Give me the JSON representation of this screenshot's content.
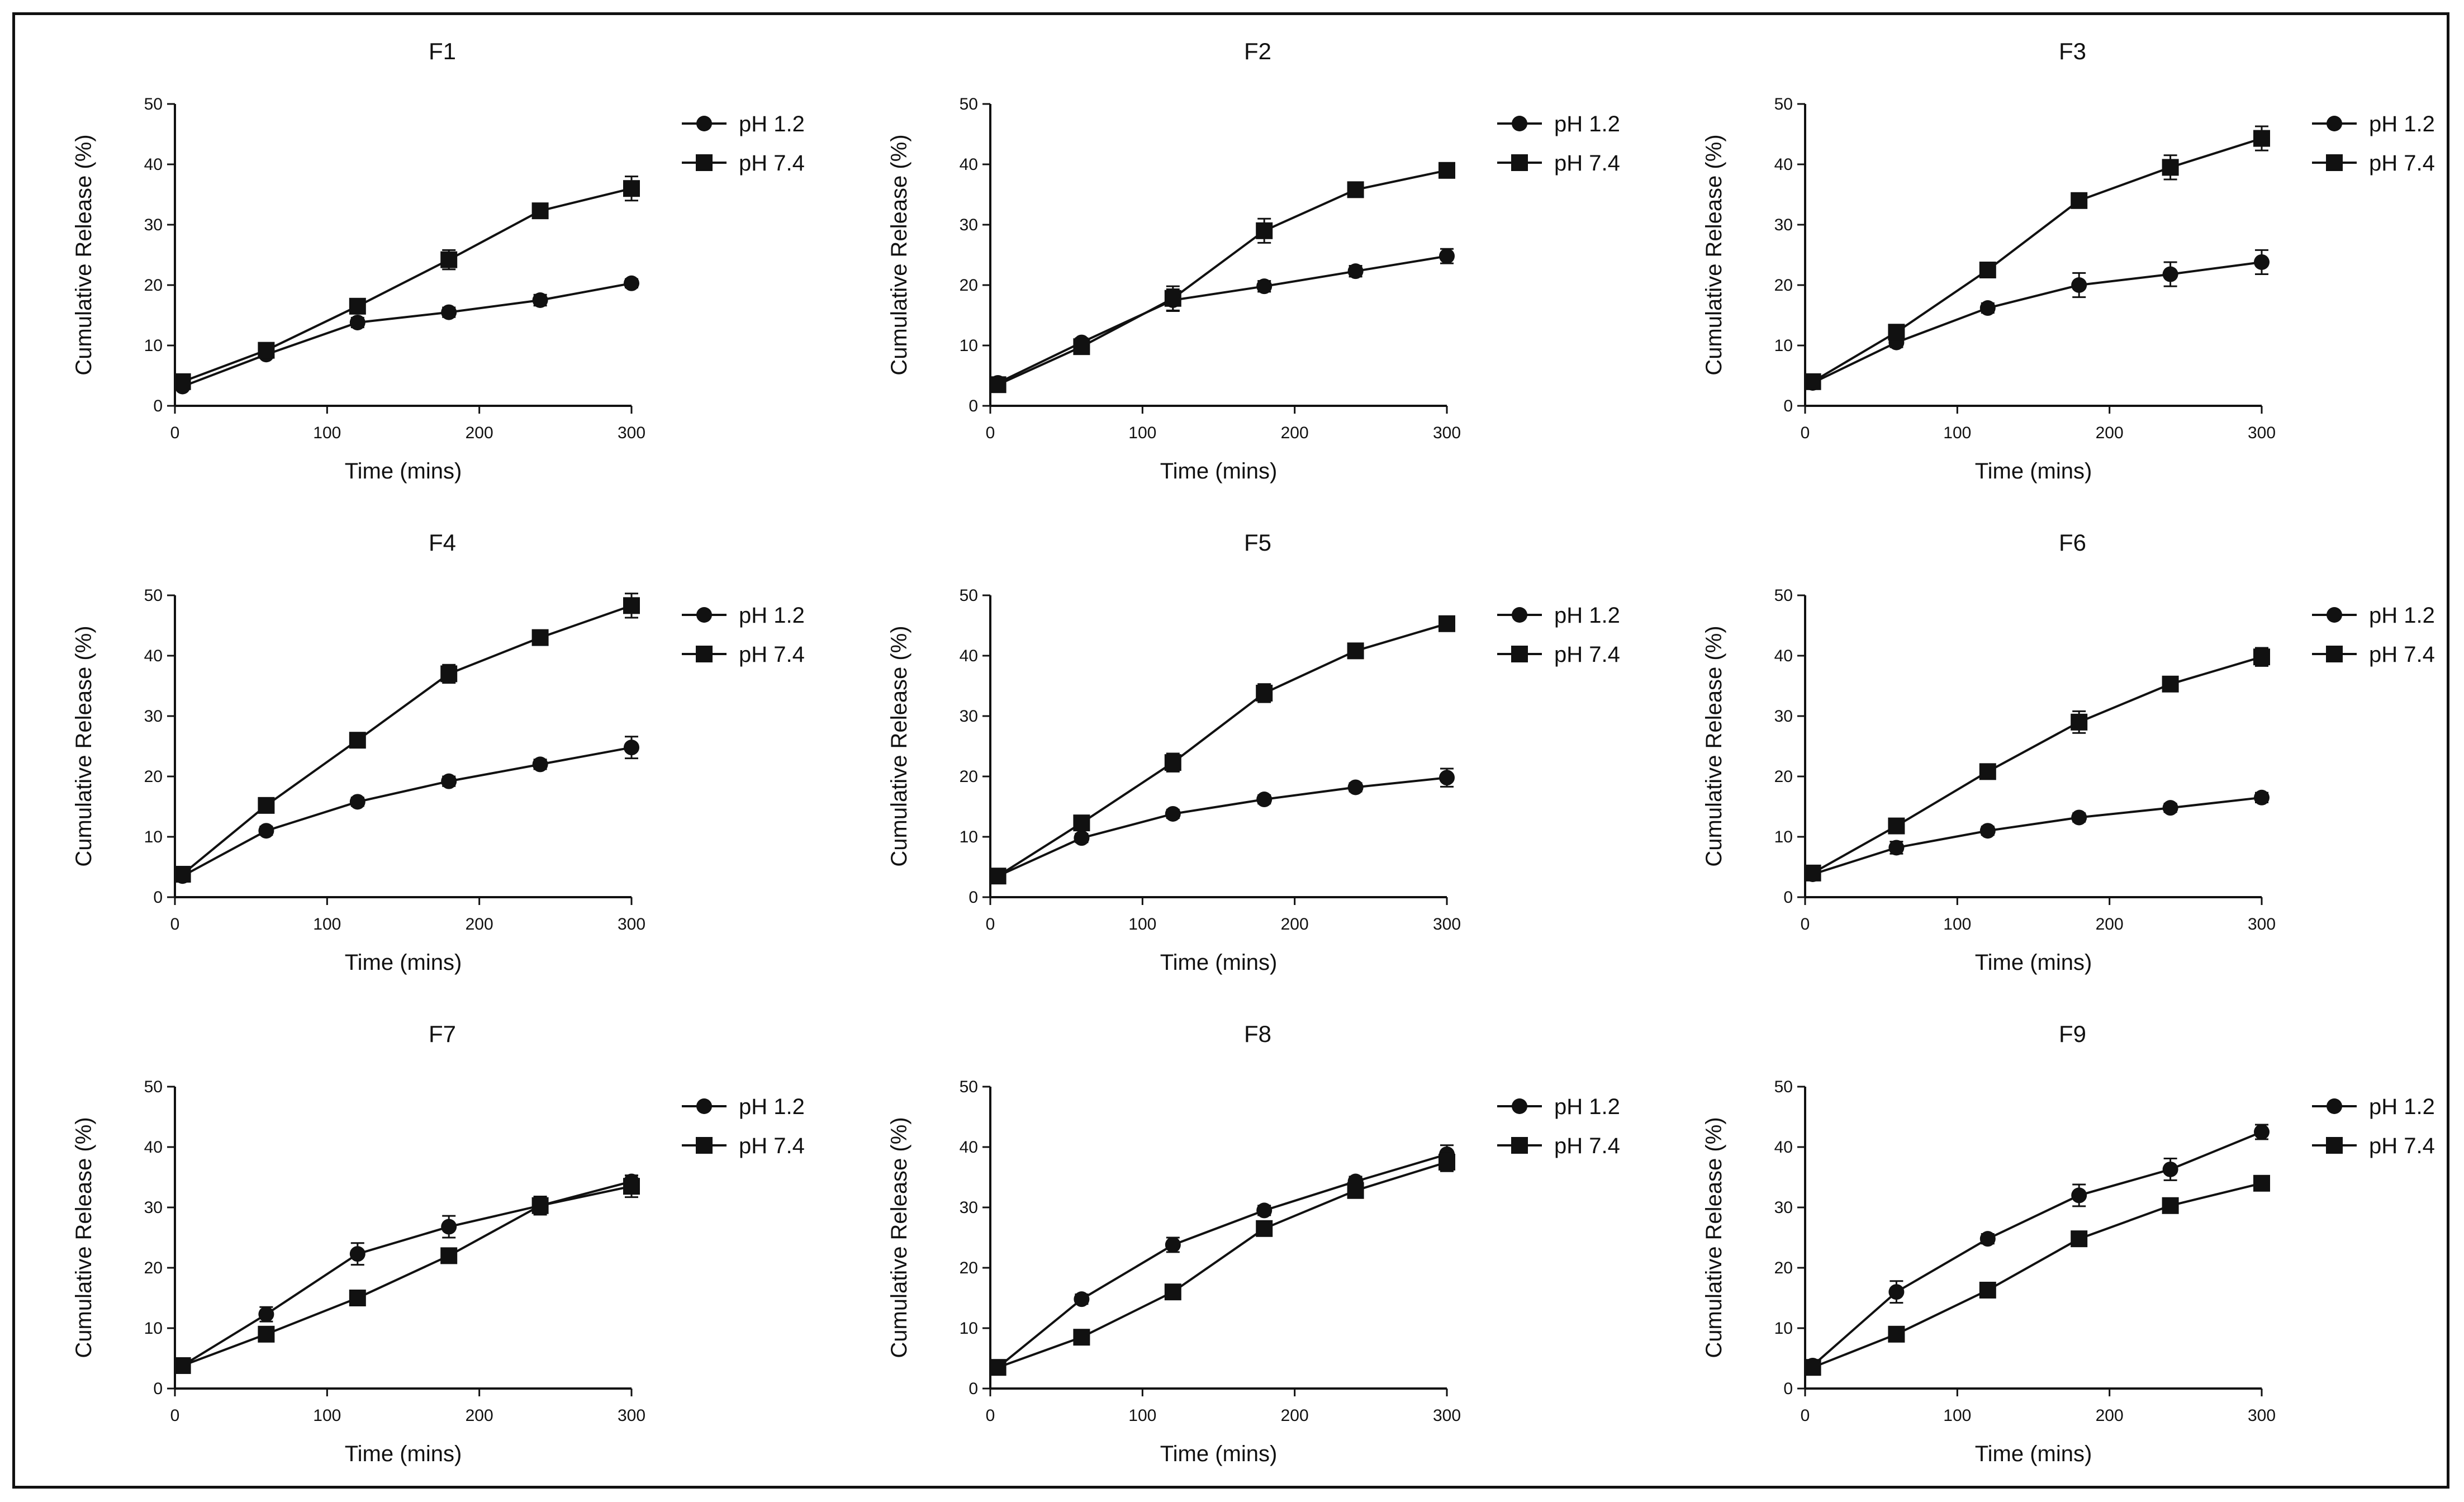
{
  "chart_data": [
    {
      "type": "line",
      "title": "F1",
      "xlabel": "Time (mins)",
      "ylabel": "Cumulative Release (%)",
      "xlim": [
        0,
        300
      ],
      "ylim": [
        0,
        50
      ],
      "xticks": [
        0,
        100,
        200,
        300
      ],
      "yticks": [
        0,
        10,
        20,
        30,
        40,
        50
      ],
      "legend_position": "right",
      "x": [
        5,
        60,
        120,
        180,
        240,
        300
      ],
      "series": [
        {
          "name": "pH 1.2",
          "marker": "circle",
          "values": [
            3.2,
            8.5,
            13.8,
            15.5,
            17.5,
            20.3
          ],
          "errors": [
            0.5,
            0.6,
            0.8,
            0.8,
            0.9,
            0.7
          ]
        },
        {
          "name": "pH 7.4",
          "marker": "square",
          "values": [
            4.0,
            9.2,
            16.5,
            24.2,
            32.3,
            36.0
          ],
          "errors": [
            0.5,
            0.6,
            0.8,
            1.6,
            0.6,
            2.0
          ]
        }
      ]
    },
    {
      "type": "line",
      "title": "F2",
      "xlabel": "Time (mins)",
      "ylabel": "Cumulative Release (%)",
      "xlim": [
        0,
        300
      ],
      "ylim": [
        0,
        50
      ],
      "xticks": [
        0,
        100,
        200,
        300
      ],
      "yticks": [
        0,
        10,
        20,
        30,
        40,
        50
      ],
      "legend_position": "right",
      "x": [
        5,
        60,
        120,
        180,
        240,
        300
      ],
      "series": [
        {
          "name": "pH 1.2",
          "marker": "circle",
          "values": [
            3.8,
            10.5,
            17.5,
            19.8,
            22.3,
            24.8
          ],
          "errors": [
            0.5,
            0.7,
            1.8,
            0.9,
            0.9,
            1.2
          ]
        },
        {
          "name": "pH 7.4",
          "marker": "square",
          "values": [
            3.5,
            9.8,
            17.8,
            29.0,
            35.8,
            39.0
          ],
          "errors": [
            0.5,
            0.6,
            2.0,
            2.0,
            0.6,
            0.8
          ]
        }
      ]
    },
    {
      "type": "line",
      "title": "F3",
      "xlabel": "Time (mins)",
      "ylabel": "Cumulative Release (%)",
      "xlim": [
        0,
        300
      ],
      "ylim": [
        0,
        50
      ],
      "xticks": [
        0,
        100,
        200,
        300
      ],
      "yticks": [
        0,
        10,
        20,
        30,
        40,
        50
      ],
      "legend_position": "right",
      "x": [
        5,
        60,
        120,
        180,
        240,
        300
      ],
      "series": [
        {
          "name": "pH 1.2",
          "marker": "circle",
          "values": [
            3.8,
            10.5,
            16.2,
            20.0,
            21.8,
            23.8
          ],
          "errors": [
            0.5,
            0.8,
            0.8,
            2.0,
            2.0,
            2.0
          ]
        },
        {
          "name": "pH 7.4",
          "marker": "square",
          "values": [
            4.0,
            12.2,
            22.5,
            34.0,
            39.5,
            44.3
          ],
          "errors": [
            0.5,
            0.8,
            0.9,
            0.9,
            2.0,
            2.0
          ]
        }
      ]
    },
    {
      "type": "line",
      "title": "F4",
      "xlabel": "Time (mins)",
      "ylabel": "Cumulative Release (%)",
      "xlim": [
        0,
        300
      ],
      "ylim": [
        0,
        50
      ],
      "xticks": [
        0,
        100,
        200,
        300
      ],
      "yticks": [
        0,
        10,
        20,
        30,
        40,
        50
      ],
      "legend_position": "right",
      "x": [
        5,
        60,
        120,
        180,
        240,
        300
      ],
      "series": [
        {
          "name": "pH 1.2",
          "marker": "circle",
          "values": [
            3.5,
            11.0,
            15.8,
            19.2,
            22.0,
            24.8
          ],
          "errors": [
            0.5,
            0.7,
            0.7,
            0.8,
            0.8,
            1.8
          ]
        },
        {
          "name": "pH 7.4",
          "marker": "square",
          "values": [
            3.8,
            15.2,
            26.0,
            37.0,
            43.0,
            48.3
          ],
          "errors": [
            0.5,
            1.2,
            1.0,
            1.5,
            1.2,
            2.0
          ]
        }
      ]
    },
    {
      "type": "line",
      "title": "F5",
      "xlabel": "Time (mins)",
      "ylabel": "Cumulative Release (%)",
      "xlim": [
        0,
        300
      ],
      "ylim": [
        0,
        50
      ],
      "xticks": [
        0,
        100,
        200,
        300
      ],
      "yticks": [
        0,
        10,
        20,
        30,
        40,
        50
      ],
      "legend_position": "right",
      "x": [
        5,
        60,
        120,
        180,
        240,
        300
      ],
      "series": [
        {
          "name": "pH 1.2",
          "marker": "circle",
          "values": [
            3.5,
            9.8,
            13.8,
            16.2,
            18.2,
            19.8
          ],
          "errors": [
            0.5,
            0.7,
            0.7,
            0.7,
            0.7,
            1.5
          ]
        },
        {
          "name": "pH 7.4",
          "marker": "square",
          "values": [
            3.5,
            12.3,
            22.3,
            33.8,
            40.8,
            45.3
          ],
          "errors": [
            0.5,
            0.8,
            1.5,
            1.5,
            0.8,
            0.8
          ]
        }
      ]
    },
    {
      "type": "line",
      "title": "F6",
      "xlabel": "Time (mins)",
      "ylabel": "Cumulative Release (%)",
      "xlim": [
        0,
        300
      ],
      "ylim": [
        0,
        50
      ],
      "xticks": [
        0,
        100,
        200,
        300
      ],
      "yticks": [
        0,
        10,
        20,
        30,
        40,
        50
      ],
      "legend_position": "right",
      "x": [
        5,
        60,
        120,
        180,
        240,
        300
      ],
      "series": [
        {
          "name": "pH 1.2",
          "marker": "circle",
          "values": [
            3.8,
            8.2,
            11.0,
            13.2,
            14.8,
            16.5
          ],
          "errors": [
            0.5,
            1.0,
            0.7,
            0.7,
            0.7,
            0.8
          ]
        },
        {
          "name": "pH 7.4",
          "marker": "square",
          "values": [
            4.0,
            11.8,
            20.8,
            29.0,
            35.3,
            39.8
          ],
          "errors": [
            0.5,
            0.7,
            0.8,
            1.8,
            1.2,
            1.5
          ]
        }
      ]
    },
    {
      "type": "line",
      "title": "F7",
      "xlabel": "Time (mins)",
      "ylabel": "Cumulative Release (%)",
      "xlim": [
        0,
        300
      ],
      "ylim": [
        0,
        50
      ],
      "xticks": [
        0,
        100,
        200,
        300
      ],
      "yticks": [
        0,
        10,
        20,
        30,
        40,
        50
      ],
      "legend_position": "right",
      "x": [
        5,
        60,
        120,
        180,
        240,
        300
      ],
      "series": [
        {
          "name": "pH 1.2",
          "marker": "circle",
          "values": [
            3.8,
            12.3,
            22.3,
            26.8,
            30.3,
            34.3
          ],
          "errors": [
            0.5,
            1.2,
            1.8,
            1.8,
            1.2,
            1.0
          ]
        },
        {
          "name": "pH 7.4",
          "marker": "square",
          "values": [
            3.8,
            9.0,
            15.0,
            22.0,
            30.3,
            33.5
          ],
          "errors": [
            0.5,
            0.7,
            0.8,
            0.8,
            1.5,
            1.8
          ]
        }
      ]
    },
    {
      "type": "line",
      "title": "F8",
      "xlabel": "Time (mins)",
      "ylabel": "Cumulative Release (%)",
      "xlim": [
        0,
        300
      ],
      "ylim": [
        0,
        50
      ],
      "xticks": [
        0,
        100,
        200,
        300
      ],
      "yticks": [
        0,
        10,
        20,
        30,
        40,
        50
      ],
      "legend_position": "right",
      "x": [
        5,
        60,
        120,
        180,
        240,
        300
      ],
      "series": [
        {
          "name": "pH 1.2",
          "marker": "circle",
          "values": [
            3.5,
            14.8,
            23.8,
            29.5,
            34.3,
            38.8
          ],
          "errors": [
            0.5,
            0.8,
            1.2,
            0.8,
            0.8,
            1.5
          ]
        },
        {
          "name": "pH 7.4",
          "marker": "square",
          "values": [
            3.5,
            8.5,
            16.0,
            26.5,
            32.8,
            37.5
          ],
          "errors": [
            0.5,
            0.7,
            1.2,
            1.2,
            1.2,
            1.5
          ]
        }
      ]
    },
    {
      "type": "line",
      "title": "F9",
      "xlabel": "Time (mins)",
      "ylabel": "Cumulative Release (%)",
      "xlim": [
        0,
        300
      ],
      "ylim": [
        0,
        50
      ],
      "xticks": [
        0,
        100,
        200,
        300
      ],
      "yticks": [
        0,
        10,
        20,
        30,
        40,
        50
      ],
      "legend_position": "right",
      "x": [
        5,
        60,
        120,
        180,
        240,
        300
      ],
      "series": [
        {
          "name": "pH 1.2",
          "marker": "circle",
          "values": [
            3.8,
            16.0,
            24.8,
            32.0,
            36.3,
            42.5
          ],
          "errors": [
            0.5,
            1.8,
            0.8,
            1.8,
            1.8,
            1.2
          ]
        },
        {
          "name": "pH 7.4",
          "marker": "square",
          "values": [
            3.5,
            9.0,
            16.3,
            24.8,
            30.3,
            34.0
          ],
          "errors": [
            0.5,
            0.7,
            0.8,
            1.2,
            0.8,
            0.8
          ]
        }
      ]
    }
  ]
}
